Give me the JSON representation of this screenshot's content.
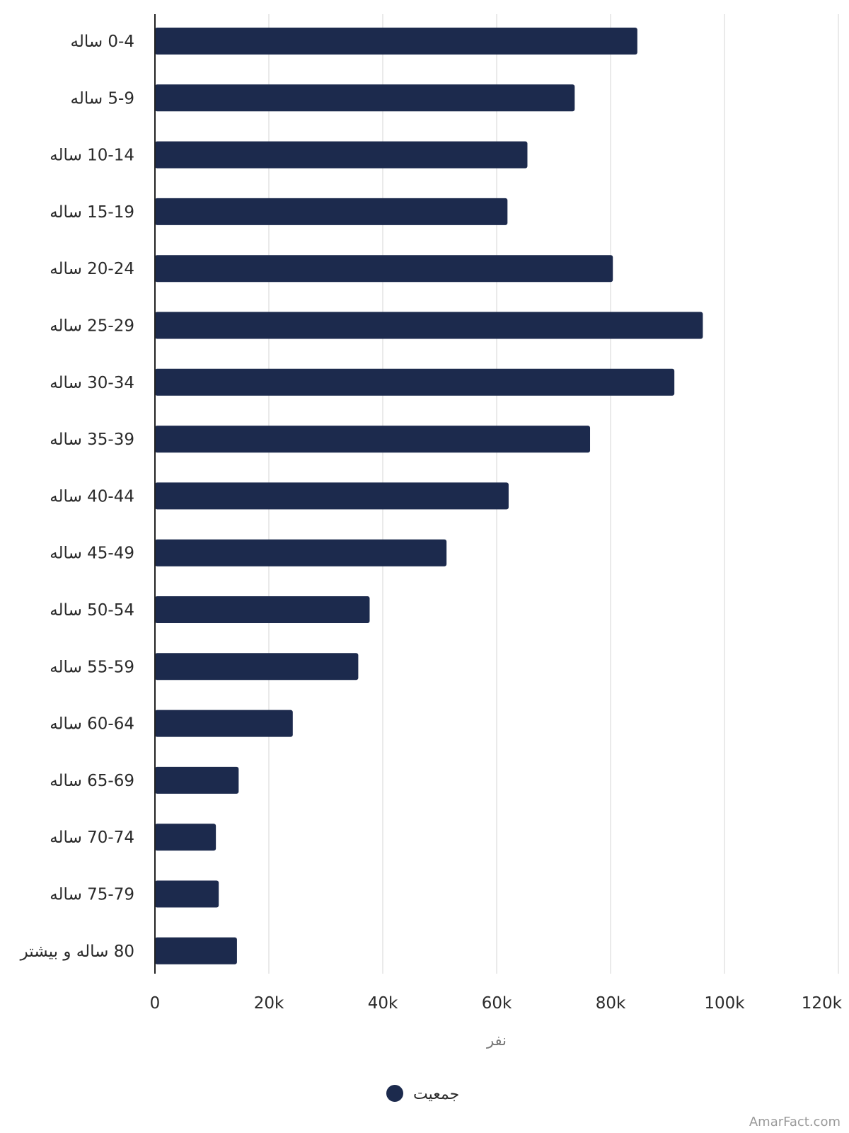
{
  "chart_data": {
    "type": "bar",
    "orientation": "horizontal",
    "categories": [
      "0-4 ساله",
      "5-9 ساله",
      "10-14 ساله",
      "15-19 ساله",
      "20-24 ساله",
      "25-29 ساله",
      "30-34 ساله",
      "35-39 ساله",
      "40-44 ساله",
      "45-49 ساله",
      "50-54 ساله",
      "55-59 ساله",
      "60-64 ساله",
      "65-69 ساله",
      "70-74 ساله",
      "75-79 ساله",
      "80 ساله و بیشتر"
    ],
    "series": [
      {
        "name": "جمعیت",
        "color": "#1c2a4d",
        "values": [
          84700,
          73700,
          65400,
          61900,
          80400,
          96200,
          91200,
          76400,
          62100,
          51200,
          37700,
          35700,
          24200,
          14700,
          10700,
          11200,
          14400
        ]
      }
    ],
    "xlabel": "نفر",
    "xlim": [
      0,
      120000
    ],
    "xticks": [
      0,
      20000,
      40000,
      60000,
      80000,
      100000,
      120000
    ],
    "xtick_labels": [
      "0",
      "20k",
      "40k",
      "60k",
      "80k",
      "100k",
      "120k"
    ],
    "grid": "vertical",
    "legend_position": "bottom-center",
    "colors": {
      "bar": "#1c2a4d",
      "grid": "#e3e3e3",
      "axis": "#222222"
    }
  },
  "watermark": "AmarFact.com"
}
